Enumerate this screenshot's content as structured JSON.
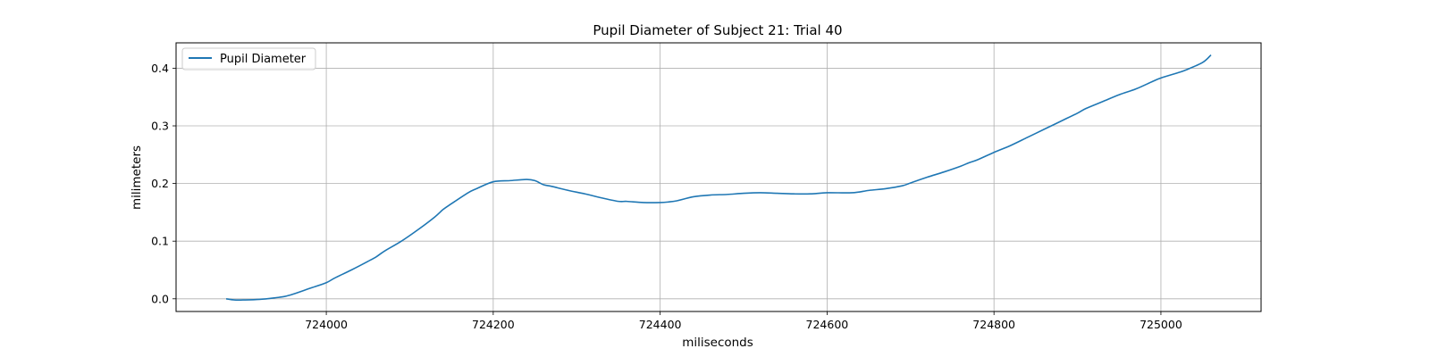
{
  "chart_data": {
    "type": "line",
    "title": "Pupil Diameter of Subject 21: Trial 40",
    "xlabel": "miliseconds",
    "ylabel": "milimeters",
    "xlim": [
      723820,
      725120
    ],
    "ylim": [
      -0.022,
      0.444
    ],
    "xticks": [
      724000,
      724200,
      724400,
      724600,
      724800,
      725000
    ],
    "yticks": [
      0.0,
      0.1,
      0.2,
      0.3,
      0.4
    ],
    "ytick_labels": [
      "0.0",
      "0.1",
      "0.2",
      "0.3",
      "0.4"
    ],
    "grid": true,
    "legend_position": "top-left",
    "series": [
      {
        "name": "Pupil Diameter",
        "color": "#1f77b4",
        "x": [
          723880,
          723890,
          723900,
          723920,
          723940,
          723950,
          723960,
          723980,
          724000,
          724010,
          724030,
          724050,
          724060,
          724070,
          724090,
          724110,
          724130,
          724140,
          724150,
          724170,
          724180,
          724200,
          724220,
          724240,
          724250,
          724260,
          724270,
          724290,
          724310,
          724330,
          724350,
          724360,
          724380,
          724400,
          724410,
          724420,
          724440,
          724460,
          724480,
          724500,
          724520,
          724540,
          724560,
          724580,
          724600,
          724630,
          724650,
          724670,
          724690,
          724700,
          724720,
          724740,
          724760,
          724770,
          724780,
          724800,
          724820,
          724840,
          724860,
          724880,
          724900,
          724910,
          724930,
          724950,
          724970,
          724990,
          725000,
          725020,
          725030,
          725050,
          725060
        ],
        "y": [
          0.0,
          -0.002,
          -0.002,
          -0.001,
          0.002,
          0.004,
          0.008,
          0.018,
          0.028,
          0.036,
          0.05,
          0.065,
          0.073,
          0.083,
          0.1,
          0.12,
          0.142,
          0.155,
          0.165,
          0.184,
          0.191,
          0.203,
          0.205,
          0.207,
          0.205,
          0.198,
          0.195,
          0.188,
          0.182,
          0.175,
          0.169,
          0.169,
          0.167,
          0.167,
          0.168,
          0.17,
          0.177,
          0.18,
          0.181,
          0.183,
          0.184,
          0.183,
          0.182,
          0.182,
          0.184,
          0.184,
          0.188,
          0.191,
          0.196,
          0.201,
          0.211,
          0.22,
          0.23,
          0.236,
          0.241,
          0.254,
          0.266,
          0.28,
          0.294,
          0.308,
          0.322,
          0.33,
          0.342,
          0.354,
          0.364,
          0.377,
          0.383,
          0.392,
          0.397,
          0.41,
          0.423
        ]
      }
    ]
  }
}
